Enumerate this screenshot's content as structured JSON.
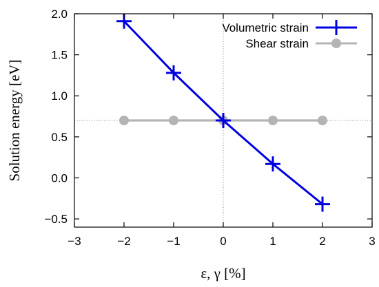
{
  "chart_data": {
    "type": "line",
    "xlabel": "ε, γ [%]",
    "ylabel": "Solution energy [eV]",
    "xlim": [
      -3,
      3
    ],
    "ylim": [
      -0.6,
      2.0
    ],
    "xticks": [
      -3,
      -2,
      -1,
      0,
      1,
      2,
      3
    ],
    "yticks": [
      -0.5,
      0.0,
      0.5,
      1.0,
      1.5,
      2.0
    ],
    "xtick_labels": [
      "−3",
      "−2",
      "−1",
      "0",
      "1",
      "2",
      "3"
    ],
    "ytick_labels": [
      "−0.5",
      "0.0",
      "0.5",
      "1.0",
      "1.5",
      "2.0"
    ],
    "reference_lines": {
      "x": 0,
      "y": 0.7
    },
    "legend_position": "top-right",
    "grid": false,
    "series": [
      {
        "name": "Volumetric strain",
        "color": "#0000e0",
        "marker": "plus",
        "x": [
          -2,
          -1,
          0,
          1,
          2
        ],
        "y": [
          1.91,
          1.28,
          0.7,
          0.17,
          -0.32
        ]
      },
      {
        "name": "Shear strain",
        "color": "#b4b4b4",
        "marker": "circle",
        "x": [
          -2,
          -1,
          0,
          1,
          2
        ],
        "y": [
          0.7,
          0.7,
          0.7,
          0.7,
          0.7
        ]
      }
    ]
  }
}
